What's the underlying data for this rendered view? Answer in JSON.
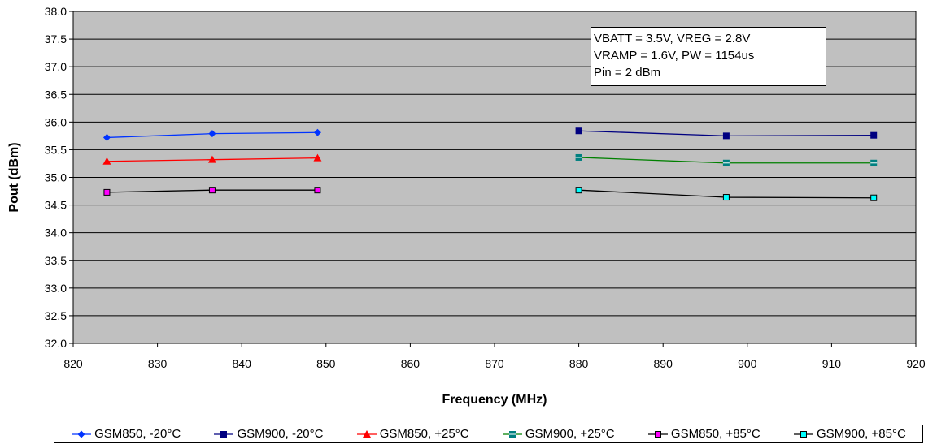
{
  "chart_data": {
    "type": "line",
    "xlabel": "Frequency (MHz)",
    "ylabel": "Pout (dBm)",
    "xlim": [
      820,
      920
    ],
    "ylim": [
      32.0,
      38.0
    ],
    "x_ticks": [
      "820",
      "830",
      "840",
      "850",
      "860",
      "870",
      "880",
      "890",
      "900",
      "910",
      "920"
    ],
    "y_ticks": [
      "32.0",
      "32.5",
      "33.0",
      "33.5",
      "34.0",
      "34.5",
      "35.0",
      "35.5",
      "36.0",
      "36.5",
      "37.0",
      "37.5",
      "38.0"
    ],
    "grid": true,
    "legend_position": "bottom",
    "annotation": [
      "VBATT = 3.5V, VREG = 2.8V",
      "VRAMP = 1.6V, PW = 1154us",
      "Pin = 2 dBm"
    ],
    "series": [
      {
        "name": "GSM850, -20°C",
        "color": "#0033ff",
        "marker": "diamond",
        "x": [
          824,
          836.5,
          849
        ],
        "y": [
          35.72,
          35.79,
          35.81
        ]
      },
      {
        "name": "GSM900, -20°C",
        "color": "#000080",
        "marker": "square",
        "x": [
          880,
          897.5,
          915
        ],
        "y": [
          35.84,
          35.75,
          35.76
        ]
      },
      {
        "name": "GSM850, +25°C",
        "color": "#ff0000",
        "marker": "triangle",
        "x": [
          824,
          836.5,
          849
        ],
        "y": [
          35.29,
          35.32,
          35.35
        ]
      },
      {
        "name": "GSM900, +25°C",
        "color": "#008080",
        "line_color": "#008000",
        "marker": "star",
        "x": [
          880,
          897.5,
          915
        ],
        "y": [
          35.36,
          35.26,
          35.26
        ]
      },
      {
        "name": "GSM850, +85°C",
        "color": "#ff00ff",
        "line_color": "#000000",
        "marker": "square-outlined",
        "x": [
          824,
          836.5,
          849
        ],
        "y": [
          34.73,
          34.77,
          34.77
        ]
      },
      {
        "name": "GSM900, +85°C",
        "color": "#00ffff",
        "line_color": "#000000",
        "marker": "square-outlined",
        "x": [
          880,
          897.5,
          915
        ],
        "y": [
          34.77,
          34.64,
          34.63
        ]
      }
    ]
  },
  "colors": {
    "plot_background": "#c0c0c0",
    "gridline": "#000000"
  }
}
